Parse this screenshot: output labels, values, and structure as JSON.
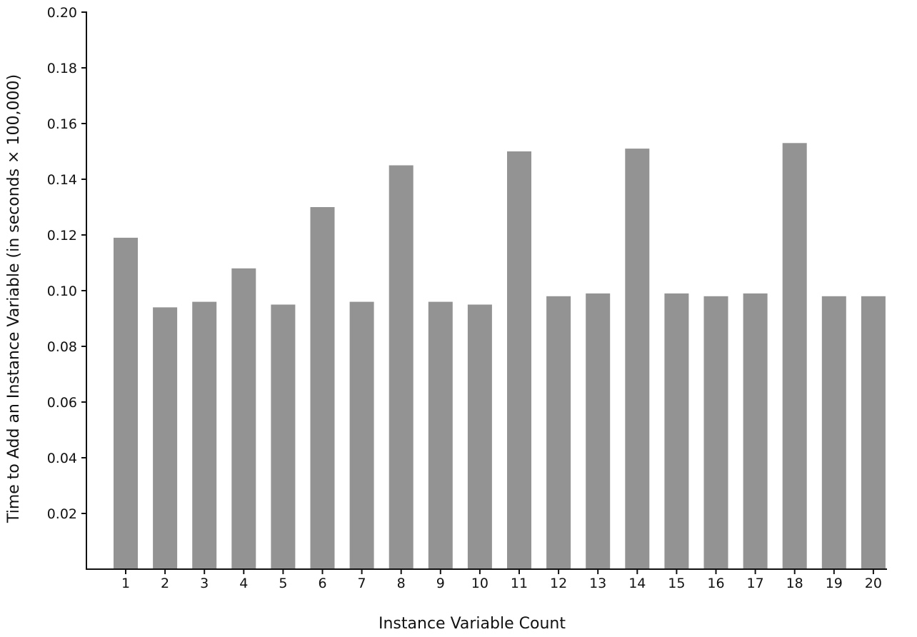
{
  "chart_data": {
    "type": "bar",
    "title": "",
    "xlabel": "Instance Variable Count",
    "ylabel": "Time to Add an Instance Variable (in seconds × 100,000)",
    "categories": [
      "1",
      "2",
      "3",
      "4",
      "5",
      "6",
      "7",
      "8",
      "9",
      "10",
      "11",
      "12",
      "13",
      "14",
      "15",
      "16",
      "17",
      "18",
      "19",
      "20"
    ],
    "values": [
      0.119,
      0.094,
      0.096,
      0.108,
      0.095,
      0.13,
      0.096,
      0.145,
      0.096,
      0.095,
      0.15,
      0.098,
      0.099,
      0.151,
      0.099,
      0.098,
      0.099,
      0.153,
      0.098,
      0.098
    ],
    "ylim": [
      0,
      0.2
    ],
    "yticks": [
      "0.02",
      "0.04",
      "0.06",
      "0.08",
      "0.10",
      "0.12",
      "0.14",
      "0.16",
      "0.18",
      "0.20"
    ],
    "bar_color": "#939393",
    "axis_color": "#111111",
    "grid": false,
    "legend": "none"
  }
}
